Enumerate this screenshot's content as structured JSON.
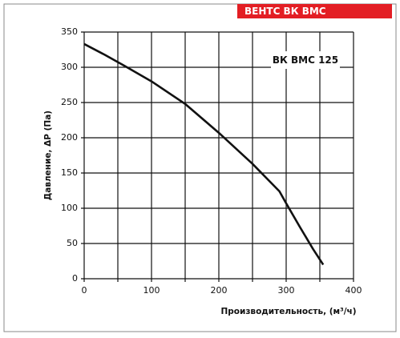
{
  "chart_data": {
    "type": "line",
    "brand": "ВЕНТС ВК ВМС",
    "annotation": "ВК ВМС 125",
    "xlabel": "Производительность, (м³/ч)",
    "ylabel": "Давление, ΔP (Па)",
    "x": [
      0,
      30,
      60,
      100,
      150,
      200,
      250,
      290,
      300,
      320,
      340,
      355
    ],
    "series": [
      {
        "name": "ВК ВМС 125",
        "color": "#111111",
        "values": [
          333,
          318,
          302,
          280,
          248,
          207,
          163,
          124,
          107,
          74,
          42,
          20
        ]
      }
    ],
    "xlim": [
      0,
      400
    ],
    "xticks": [
      0,
      100,
      200,
      300,
      400
    ],
    "x_minor_ticks": [
      50,
      150,
      250,
      350
    ],
    "ylim": [
      0,
      350
    ],
    "yticks": [
      0,
      50,
      100,
      150,
      200,
      250,
      300,
      350
    ],
    "grid": true,
    "brand_color": "#e31e24"
  }
}
